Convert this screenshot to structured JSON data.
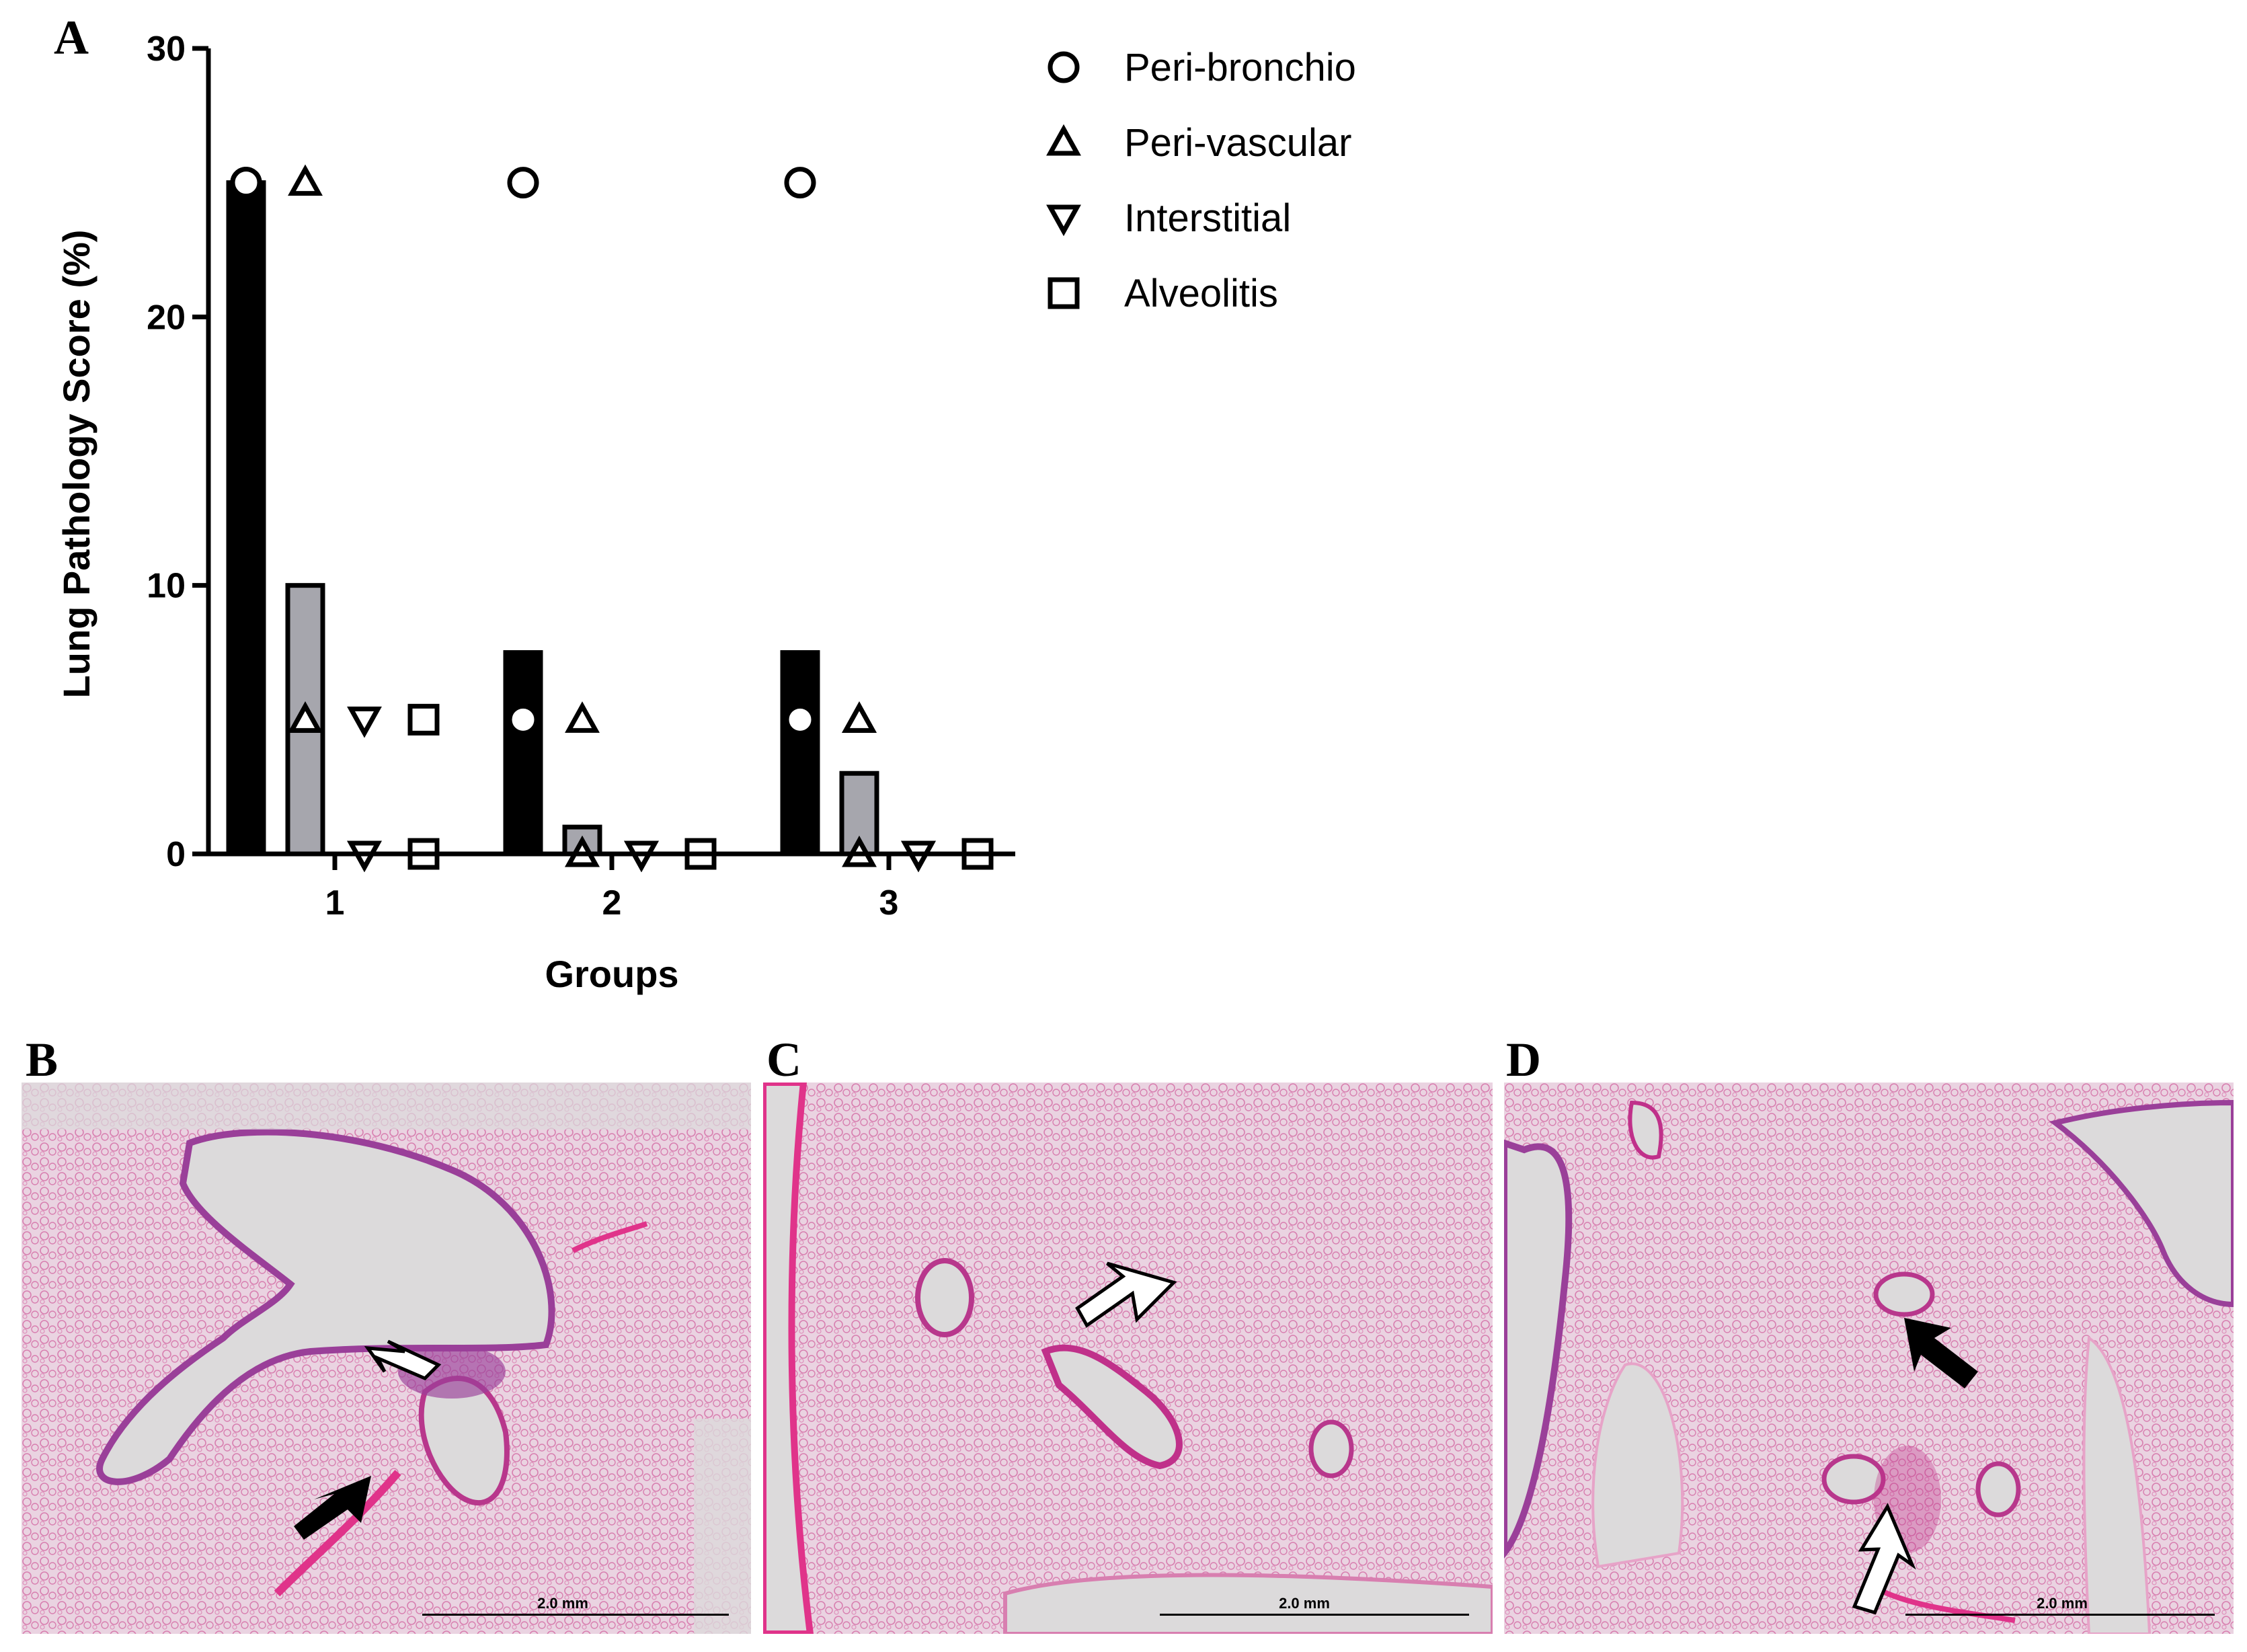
{
  "panels": {
    "a": "A",
    "b": "B",
    "c": "C",
    "d": "D"
  },
  "chart_data": {
    "type": "bar",
    "ylabel": "Lung Pathology Score (%)",
    "xlabel": "Groups",
    "categories": [
      "1",
      "2",
      "3"
    ],
    "yticks": [
      0,
      10,
      20,
      30
    ],
    "ylim": [
      0,
      30
    ],
    "legend_position": "top-right",
    "series": [
      {
        "name": "Peri-bronchio",
        "marker": "circle",
        "bar_color": "#000000",
        "bar_values": [
          25,
          7.5,
          7.5
        ],
        "points": [
          [
            25,
            25,
            25
          ],
          [
            25,
            5,
            5
          ],
          [
            25,
            5,
            5
          ]
        ]
      },
      {
        "name": "Peri-vascular",
        "marker": "triangle-up",
        "bar_color": "#a6a6ad",
        "bar_values": [
          10,
          1,
          3
        ],
        "points": [
          [
            25,
            5,
            5
          ],
          [
            5,
            0,
            0
          ],
          [
            5,
            5,
            0
          ]
        ]
      },
      {
        "name": "Interstitial",
        "marker": "triangle-down",
        "bar_color": "#000000",
        "bar_values": [
          0,
          0,
          0
        ],
        "points": [
          [
            5,
            0,
            0
          ],
          [
            0,
            0,
            0
          ],
          [
            0,
            0,
            0
          ]
        ]
      },
      {
        "name": "Alveolitis",
        "marker": "square",
        "bar_color": "#000000",
        "bar_values": [
          0,
          0,
          0
        ],
        "points": [
          [
            5,
            0,
            0
          ],
          [
            0,
            0,
            0
          ],
          [
            0,
            0,
            0
          ]
        ]
      }
    ]
  },
  "micrographs": [
    {
      "scale_label": "2.0 mm"
    },
    {
      "scale_label": "2.0 mm"
    },
    {
      "scale_label": "2.0 mm"
    }
  ],
  "colors": {
    "tissue": "#e7c6da",
    "background": "#e4dde2",
    "vessel": "#c0308a",
    "stain": "#e0338a"
  }
}
